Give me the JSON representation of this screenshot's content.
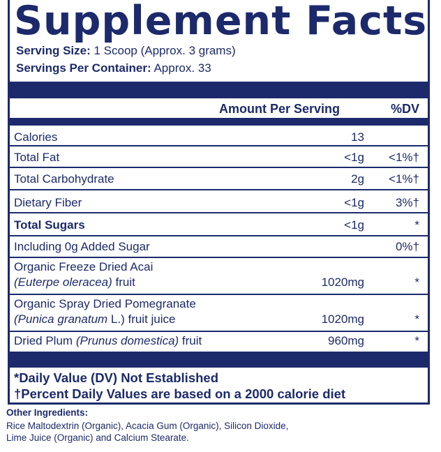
{
  "title": "Supplement Facts",
  "serving": {
    "size_label": "Serving Size:",
    "size_value": " 1 Scoop (Approx. 3 grams)",
    "per_container_label": "Servings Per Container:",
    "per_container_value": " Approx. 33"
  },
  "header": {
    "amount_per_serving": "Amount Per Serving",
    "dv": "%DV"
  },
  "rows": [
    {
      "name": "Calories",
      "amount": "13",
      "dv": ""
    },
    {
      "name": "Total Fat",
      "amount": "<1g",
      "dv": "<1%†"
    },
    {
      "name": "Total Carbohydrate",
      "amount": "2g",
      "dv": "<1%†"
    },
    {
      "name": "Dietary Fiber",
      "amount": "<1g",
      "dv": "3%†"
    },
    {
      "name": "Total Sugars",
      "amount": "<1g",
      "dv": "*"
    },
    {
      "name": "Including 0g Added Sugar",
      "amount": "",
      "dv": "0%†"
    },
    {
      "name_line1": "Organic Freeze Dried Acai",
      "name_italic": "(Euterpe oleracea)",
      "name_tail": " fruit",
      "amount": "1020mg",
      "dv": "*"
    },
    {
      "name_line1": "Organic Spray Dried Pomegranate",
      "name_italic": "(Punica granatum",
      "name_tail": " L.) fruit juice",
      "amount": "1020mg",
      "dv": "*"
    },
    {
      "name_lead": "Dried Plum ",
      "name_italic": "(Prunus domestica)",
      "name_tail": " fruit",
      "amount": "960mg",
      "dv": "*"
    }
  ],
  "footnotes": {
    "dv_not_established": "*Daily Value (DV) Not Established",
    "percent_dv_basis": "†Percent Daily Values are based on a 2000 calorie diet"
  },
  "other_ingredients": {
    "label": "Other Ingredients:",
    "line1": "Rice Maltodextrin (Organic), Acacia Gum (Organic), Silicon Dioxide,",
    "line2": "Lime Juice (Organic) and Calcium Stearate."
  },
  "colors": {
    "ink": "#1c2a6b",
    "background": "#ffffff"
  }
}
